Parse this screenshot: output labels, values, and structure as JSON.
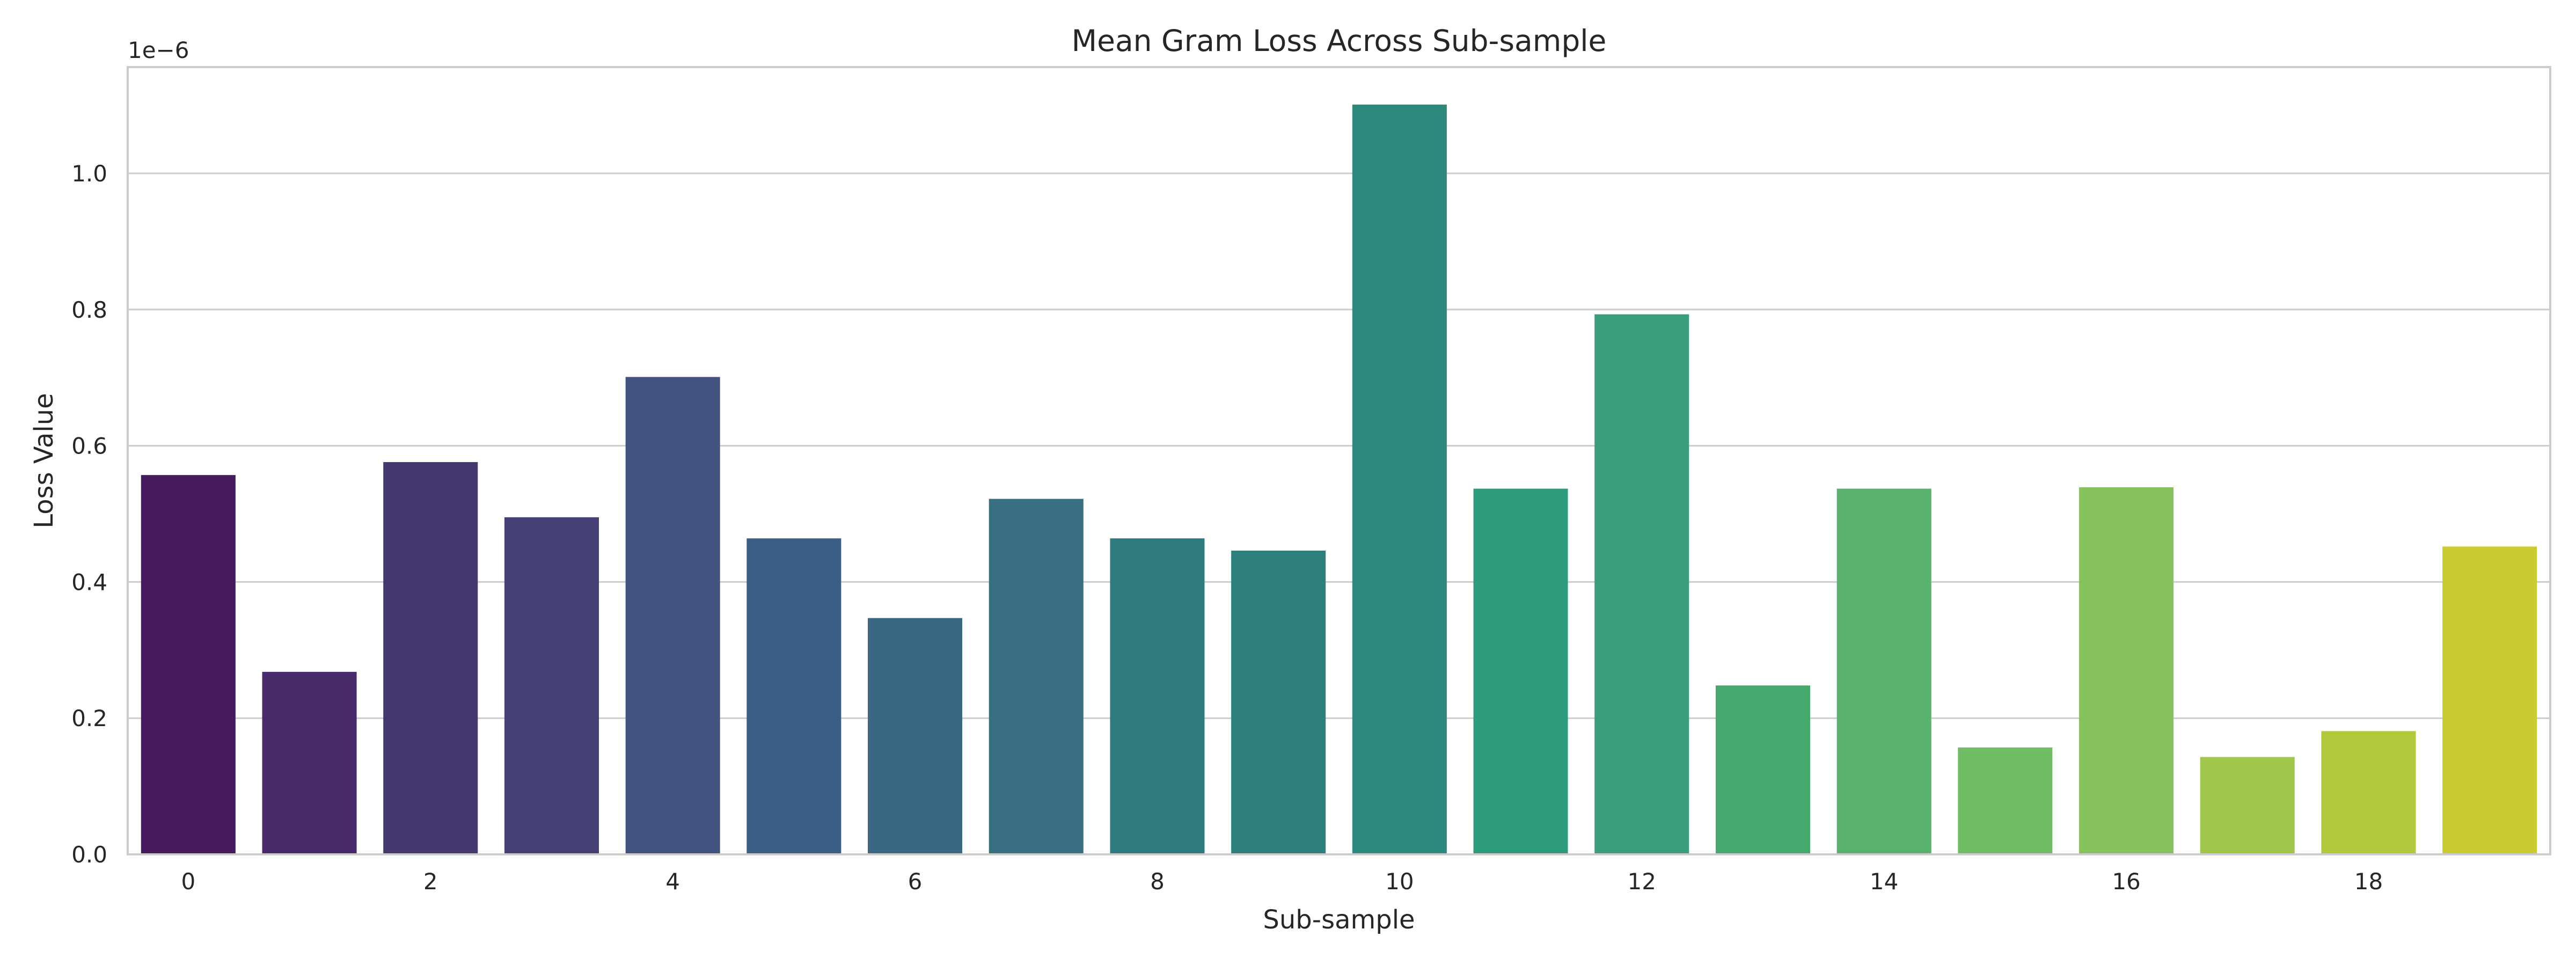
{
  "chart_data": {
    "type": "bar",
    "title": "Mean Gram Loss Across Sub-sample",
    "xlabel": "Sub-sample",
    "ylabel": "Loss Value",
    "y_offset_label": "1e−6",
    "categories": [
      "0",
      "1",
      "2",
      "3",
      "4",
      "5",
      "6",
      "7",
      "8",
      "9",
      "10",
      "11",
      "12",
      "13",
      "14",
      "15",
      "16",
      "17",
      "18",
      "19"
    ],
    "x_tick_labels": [
      "0",
      "2",
      "4",
      "6",
      "8",
      "10",
      "12",
      "14",
      "16",
      "18"
    ],
    "values": [
      0.557,
      0.268,
      0.576,
      0.495,
      0.701,
      0.464,
      0.347,
      0.522,
      0.464,
      0.446,
      1.101,
      0.537,
      0.793,
      0.248,
      0.537,
      0.157,
      0.539,
      0.143,
      0.181,
      0.452
    ],
    "y_ticks": [
      0.0,
      0.2,
      0.4,
      0.6,
      0.8,
      1.0
    ],
    "y_tick_labels": [
      "0.0",
      "0.2",
      "0.4",
      "0.6",
      "0.8",
      "1.0"
    ],
    "ylim": [
      0,
      1.156
    ],
    "grid": "horizontal",
    "legend": "none",
    "colors": [
      "#471a5e",
      "#472a6a",
      "#46376f",
      "#443f75",
      "#425380",
      "#3b5e85",
      "#3a6782",
      "#376f81",
      "#2d7b7f",
      "#2e807d",
      "#2c897c",
      "#2d9b7c",
      "#3a9e7c",
      "#43a96c",
      "#58b26c",
      "#70bd65",
      "#86c25e",
      "#a0c74b",
      "#b1c83b",
      "#c9cc30"
    ]
  }
}
